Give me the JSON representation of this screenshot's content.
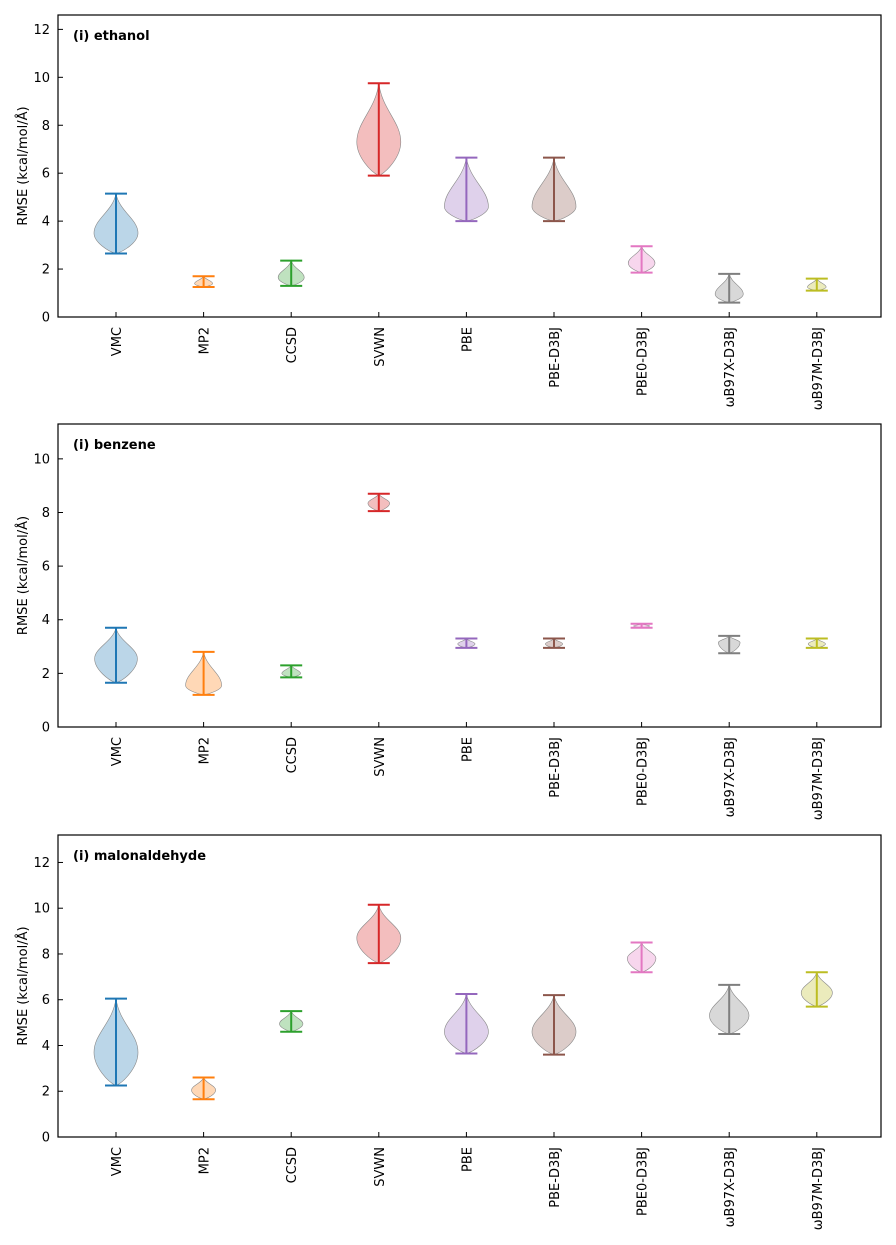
{
  "chart_data": [
    {
      "type": "violin",
      "title": "(i) ethanol",
      "ylabel": "RMSE (kcal/mol/Å)",
      "ylim": [
        0,
        12.6
      ],
      "yticks": [
        0,
        2,
        4,
        6,
        8,
        10,
        12
      ],
      "categories": [
        "VMC",
        "MP2",
        "CCSD",
        "SVWN",
        "PBE",
        "PBE-D3BJ",
        "PBE0-D3BJ",
        "ωB97X-D3BJ",
        "ωB97M-D3BJ"
      ],
      "series": [
        {
          "category": "VMC",
          "min": 2.65,
          "max": 5.15,
          "peak": 3.5,
          "color": "#1f77b4"
        },
        {
          "category": "MP2",
          "min": 1.25,
          "max": 1.7,
          "peak": 1.4,
          "color": "#ff7f0e"
        },
        {
          "category": "CCSD",
          "min": 1.3,
          "max": 2.35,
          "peak": 1.65,
          "color": "#2ca02c"
        },
        {
          "category": "SVWN",
          "min": 5.9,
          "max": 9.75,
          "peak": 7.3,
          "color": "#d62728"
        },
        {
          "category": "PBE",
          "min": 4.0,
          "max": 6.65,
          "peak": 4.6,
          "color": "#9467bd"
        },
        {
          "category": "PBE-D3BJ",
          "min": 4.0,
          "max": 6.65,
          "peak": 4.6,
          "color": "#8c564b"
        },
        {
          "category": "PBE0-D3BJ",
          "min": 1.85,
          "max": 2.95,
          "peak": 2.25,
          "color": "#e377c2"
        },
        {
          "category": "ωB97X-D3BJ",
          "min": 0.6,
          "max": 1.8,
          "peak": 0.95,
          "color": "#7f7f7f"
        },
        {
          "category": "ωB97M-D3BJ",
          "min": 1.1,
          "max": 1.6,
          "peak": 1.25,
          "color": "#bcbd22"
        }
      ]
    },
    {
      "type": "violin",
      "title": "(i) benzene",
      "ylabel": "RMSE (kcal/mol/Å)",
      "ylim": [
        0,
        11.3
      ],
      "yticks": [
        0,
        2,
        4,
        6,
        8,
        10
      ],
      "categories": [
        "VMC",
        "MP2",
        "CCSD",
        "SVWN",
        "PBE",
        "PBE-D3BJ",
        "PBE0-D3BJ",
        "ωB97X-D3BJ",
        "ωB97M-D3BJ"
      ],
      "series": [
        {
          "category": "VMC",
          "min": 1.65,
          "max": 3.7,
          "peak": 2.55,
          "color": "#1f77b4"
        },
        {
          "category": "MP2",
          "min": 1.2,
          "max": 2.8,
          "peak": 1.55,
          "color": "#ff7f0e"
        },
        {
          "category": "CCSD",
          "min": 1.85,
          "max": 2.3,
          "peak": 2.0,
          "color": "#2ca02c"
        },
        {
          "category": "SVWN",
          "min": 8.05,
          "max": 8.7,
          "peak": 8.35,
          "color": "#d62728"
        },
        {
          "category": "PBE",
          "min": 2.95,
          "max": 3.3,
          "peak": 3.1,
          "color": "#9467bd"
        },
        {
          "category": "PBE-D3BJ",
          "min": 2.95,
          "max": 3.3,
          "peak": 3.1,
          "color": "#8c564b"
        },
        {
          "category": "PBE0-D3BJ",
          "min": 3.7,
          "max": 3.85,
          "peak": 3.77,
          "color": "#e377c2"
        },
        {
          "category": "ωB97X-D3BJ",
          "min": 2.75,
          "max": 3.4,
          "peak": 3.15,
          "color": "#7f7f7f"
        },
        {
          "category": "ωB97M-D3BJ",
          "min": 2.95,
          "max": 3.3,
          "peak": 3.1,
          "color": "#bcbd22"
        }
      ]
    },
    {
      "type": "violin",
      "title": "(i) malonaldehyde",
      "ylabel": "RMSE (kcal/mol/Å)",
      "ylim": [
        0,
        13.2
      ],
      "yticks": [
        0,
        2,
        4,
        6,
        8,
        10,
        12
      ],
      "categories": [
        "VMC",
        "MP2",
        "CCSD",
        "SVWN",
        "PBE",
        "PBE-D3BJ",
        "PBE0-D3BJ",
        "ωB97X-D3BJ",
        "ωB97M-D3BJ"
      ],
      "series": [
        {
          "category": "VMC",
          "min": 2.25,
          "max": 6.05,
          "peak": 3.7,
          "color": "#1f77b4"
        },
        {
          "category": "MP2",
          "min": 1.65,
          "max": 2.6,
          "peak": 2.05,
          "color": "#ff7f0e"
        },
        {
          "category": "CCSD",
          "min": 4.6,
          "max": 5.5,
          "peak": 4.95,
          "color": "#2ca02c"
        },
        {
          "category": "SVWN",
          "min": 7.6,
          "max": 10.15,
          "peak": 8.7,
          "color": "#d62728"
        },
        {
          "category": "PBE",
          "min": 3.65,
          "max": 6.25,
          "peak": 4.6,
          "color": "#9467bd"
        },
        {
          "category": "PBE-D3BJ",
          "min": 3.6,
          "max": 6.2,
          "peak": 4.6,
          "color": "#8c564b"
        },
        {
          "category": "PBE0-D3BJ",
          "min": 7.2,
          "max": 8.5,
          "peak": 7.8,
          "color": "#e377c2"
        },
        {
          "category": "ωB97X-D3BJ",
          "min": 4.5,
          "max": 6.65,
          "peak": 5.3,
          "color": "#7f7f7f"
        },
        {
          "category": "ωB97M-D3BJ",
          "min": 5.7,
          "max": 7.2,
          "peak": 6.3,
          "color": "#bcbd22"
        }
      ]
    }
  ]
}
